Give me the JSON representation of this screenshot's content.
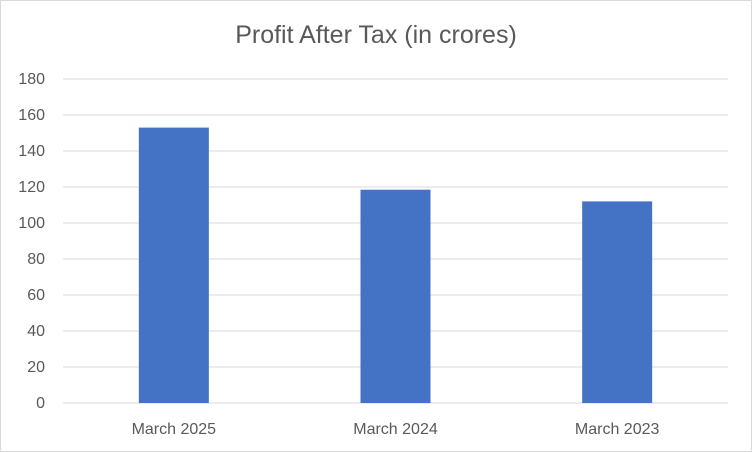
{
  "chart_data": {
    "type": "bar",
    "title": "Profit After Tax (in crores)",
    "xlabel": "",
    "ylabel": "",
    "categories": [
      "March 2025",
      "March 2024",
      "March 2023"
    ],
    "values": [
      153,
      118.5,
      112
    ],
    "ylim": [
      0,
      180
    ],
    "yticks": [
      0,
      20,
      40,
      60,
      80,
      100,
      120,
      140,
      160,
      180
    ],
    "grid": true,
    "legend": "none",
    "bar_color": "#4472C4",
    "grid_color": "#d9d9d9",
    "text_color": "#595959"
  }
}
